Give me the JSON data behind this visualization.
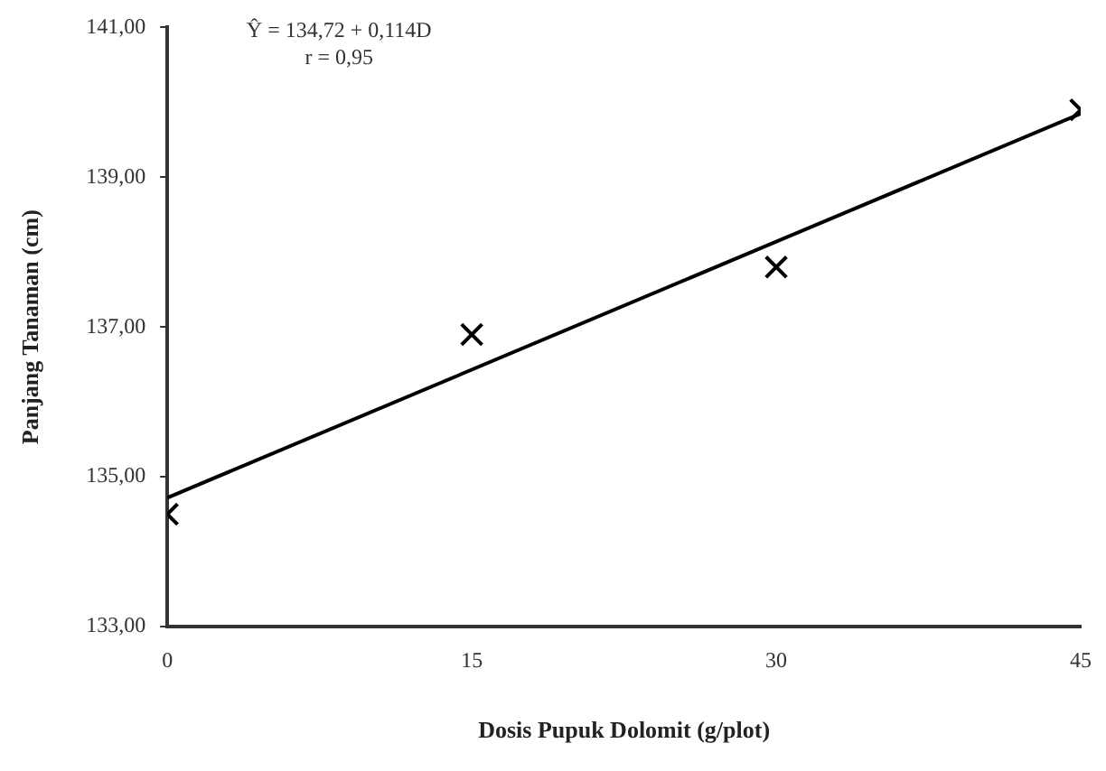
{
  "chart_data": {
    "type": "scatter",
    "xlabel": "Dosis Pupuk Dolomit (g/plot)",
    "ylabel": "Panjang Tanaman (cm)",
    "annotations": [
      "Ŷ = 134,72 + 0,114D",
      "r = 0,95"
    ],
    "series": [
      {
        "color": "#000000",
        "x": [
          0,
          15,
          30,
          45
        ],
        "values": [
          134.5,
          136.9,
          137.8,
          139.9
        ],
        "marker": "cross"
      },
      {
        "type": "line",
        "color": "#000000",
        "x": [
          0,
          45
        ],
        "values": [
          134.72,
          139.85
        ],
        "marker": "none",
        "line_style": "solid"
      }
    ],
    "xlim": [
      0,
      45
    ],
    "xticks": [
      0,
      15,
      30,
      45
    ],
    "ylim": [
      133,
      141
    ],
    "yticks": [
      {
        "value": 133,
        "label": "133,00"
      },
      {
        "value": 135,
        "label": "135,00"
      },
      {
        "value": 137,
        "label": "137,00"
      },
      {
        "value": 139,
        "label": "139,00"
      },
      {
        "value": 141,
        "label": "141,00"
      }
    ],
    "grid": false,
    "legend": false
  }
}
